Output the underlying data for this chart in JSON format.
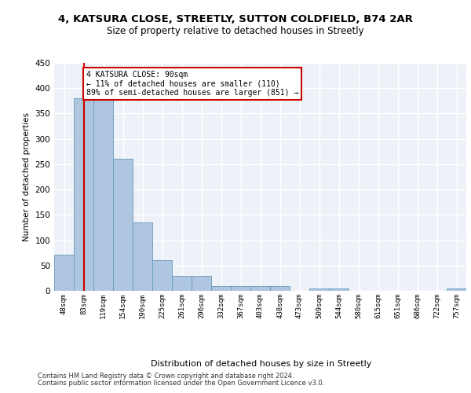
{
  "title1": "4, KATSURA CLOSE, STREETLY, SUTTON COLDFIELD, B74 2AR",
  "title2": "Size of property relative to detached houses in Streetly",
  "xlabel": "Distribution of detached houses by size in Streetly",
  "ylabel": "Number of detached properties",
  "bins": [
    "48sqm",
    "83sqm",
    "119sqm",
    "154sqm",
    "190sqm",
    "225sqm",
    "261sqm",
    "296sqm",
    "332sqm",
    "367sqm",
    "403sqm",
    "438sqm",
    "473sqm",
    "509sqm",
    "544sqm",
    "580sqm",
    "615sqm",
    "651sqm",
    "686sqm",
    "722sqm",
    "757sqm"
  ],
  "bar_values": [
    72,
    380,
    380,
    260,
    135,
    60,
    30,
    30,
    10,
    9,
    9,
    10,
    0,
    5,
    5,
    0,
    0,
    0,
    0,
    0,
    5
  ],
  "bar_color": "#aec6df",
  "bar_edge_color": "#6699bb",
  "property_line_x": 1,
  "property_line_color": "#cc0000",
  "annotation_text": "4 KATSURA CLOSE: 90sqm\n← 11% of detached houses are smaller (110)\n89% of semi-detached houses are larger (851) →",
  "annotation_box_color": "#cc0000",
  "ylim": [
    0,
    450
  ],
  "yticks": [
    0,
    50,
    100,
    150,
    200,
    250,
    300,
    350,
    400,
    450
  ],
  "footer1": "Contains HM Land Registry data © Crown copyright and database right 2024.",
  "footer2": "Contains public sector information licensed under the Open Government Licence v3.0.",
  "bg_color": "#eef2f8",
  "grid_color": "#ffffff",
  "title1_fontsize": 9.5,
  "title2_fontsize": 8.5
}
